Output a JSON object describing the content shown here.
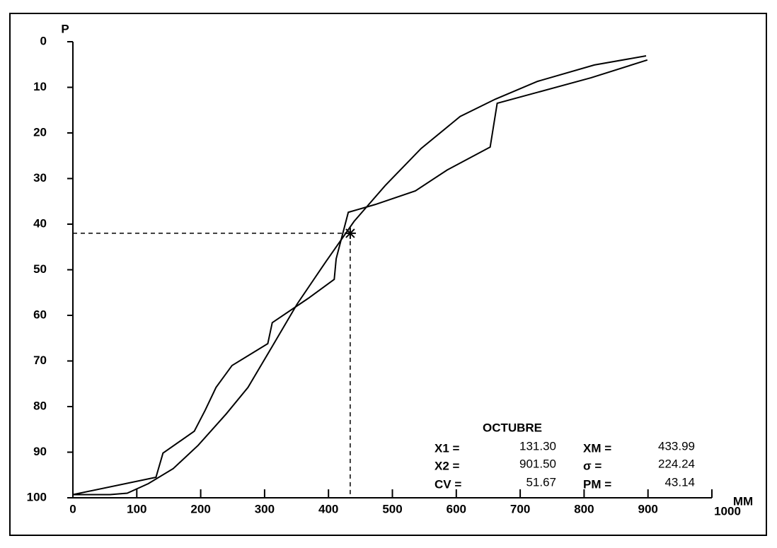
{
  "chart_data": {
    "type": "line",
    "y_label": "P",
    "x_label": "MM",
    "xlim": [
      0,
      1000
    ],
    "xticks": [
      0,
      100,
      200,
      300,
      400,
      500,
      600,
      700,
      800,
      900,
      1000
    ],
    "ylim": [
      0,
      100
    ],
    "yticks": [
      0,
      10,
      20,
      30,
      40,
      50,
      60,
      70,
      80,
      90,
      100
    ],
    "y_inverted": true,
    "grid": false,
    "series": [
      {
        "color": "#000000",
        "x": [
          0,
          130,
          141,
          190,
          207,
          224,
          249,
          305,
          312,
          368,
          409,
          412,
          431,
          473,
          536,
          586,
          653,
          664,
          811,
          899
        ],
        "values": [
          99.3,
          95.5,
          90.2,
          85.4,
          80.8,
          75.8,
          71,
          66.2,
          61.6,
          56.3,
          52.1,
          47.6,
          37.4,
          35.7,
          32.7,
          28.1,
          23.1,
          13.5,
          7.9,
          4
        ]
      },
      {
        "color": "#000000",
        "x": [
          0,
          58,
          85,
          118,
          157,
          196,
          240,
          274,
          312,
          351,
          396,
          440,
          489,
          545,
          606,
          661,
          727,
          816,
          897
        ],
        "values": [
          99.3,
          99.3,
          99,
          96.9,
          93.6,
          88.5,
          81.6,
          75.8,
          66.8,
          57.5,
          48.2,
          39.4,
          31.5,
          23.4,
          16.4,
          12.6,
          8.7,
          5.1,
          3.1
        ]
      }
    ],
    "marker": {
      "x": 434,
      "y": 42
    },
    "stats": {
      "title": "OCTUBRE",
      "rows": [
        [
          {
            "label": "X1 =",
            "value": "131.30"
          },
          {
            "label": "XM =",
            "value": "433.99"
          }
        ],
        [
          {
            "label": "X2 =",
            "value": "901.50"
          },
          {
            "label": "σ =",
            "value": "224.24"
          }
        ],
        [
          {
            "label": "CV =",
            "value": "51.67"
          },
          {
            "label": "PM =",
            "value": "43.14"
          }
        ]
      ]
    }
  }
}
